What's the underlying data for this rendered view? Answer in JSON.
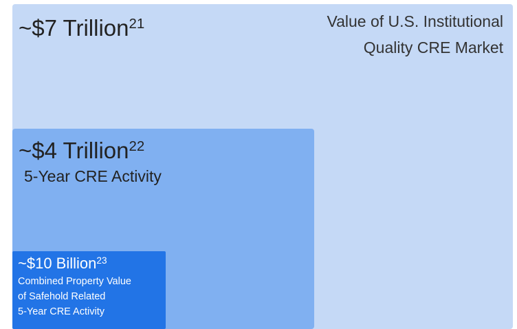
{
  "outer": {
    "amount": "~$7 Trillion",
    "footnote": "21",
    "label_lines": [
      "Value of U.S. Institutional",
      "Quality CRE Market"
    ]
  },
  "middle": {
    "amount": "~$4 Trillion",
    "footnote": "22",
    "label_lines": [
      "5-Year CRE Activity"
    ]
  },
  "inner": {
    "amount": "~$10 Billion",
    "footnote": "23",
    "label_lines": [
      "Combined Property Value",
      "of Safehold Related",
      "5-Year CRE Activity"
    ]
  }
}
